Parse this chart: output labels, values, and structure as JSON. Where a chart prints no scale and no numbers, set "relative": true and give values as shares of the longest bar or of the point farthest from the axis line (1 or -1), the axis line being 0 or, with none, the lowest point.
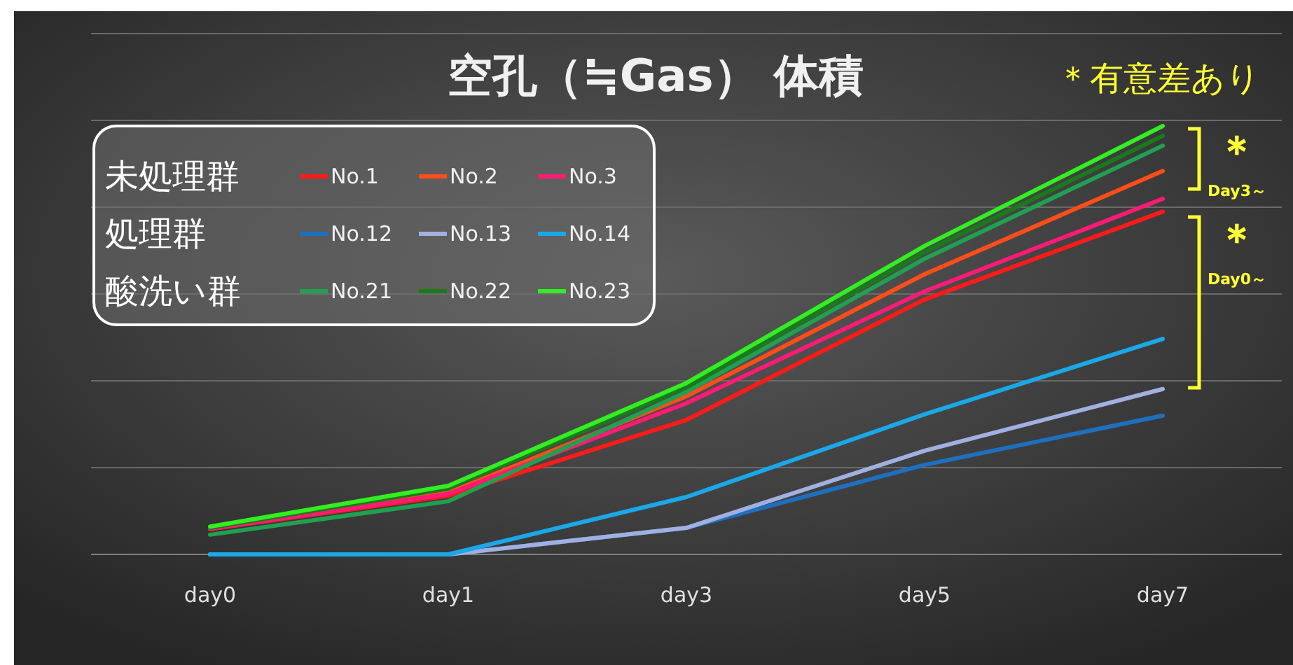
{
  "chart_data": {
    "type": "line",
    "title": "空孔（≒Gas） 体積",
    "relative": true,
    "grid": "y",
    "legend": "top left",
    "categories": [
      "day0",
      "day1",
      "day3",
      "day5",
      "day7"
    ],
    "series": [
      {
        "name": "No.1",
        "color": "#ff1a1a",
        "values": [
          0.059,
          0.137,
          0.314,
          0.595,
          0.8
        ]
      },
      {
        "name": "No.2",
        "color": "#ff4d1a",
        "values": [
          0.062,
          0.144,
          0.369,
          0.654,
          0.895
        ]
      },
      {
        "name": "No.3",
        "color": "#ff1a75",
        "values": [
          0.059,
          0.141,
          0.353,
          0.614,
          0.83
        ]
      },
      {
        "name": "No.12",
        "color": "#1f6fbf",
        "values": [
          0,
          0,
          0.062,
          0.209,
          0.324
        ]
      },
      {
        "name": "No.13",
        "color": "#a0b0e0",
        "values": [
          0,
          0,
          0.062,
          0.242,
          0.386
        ]
      },
      {
        "name": "No.14",
        "color": "#1aa8e8",
        "values": [
          0,
          0,
          0.134,
          0.327,
          0.503
        ]
      },
      {
        "name": "No.21",
        "color": "#20a050",
        "values": [
          0.046,
          0.124,
          0.379,
          0.69,
          0.954
        ]
      },
      {
        "name": "No.22",
        "color": "#1a7a1a",
        "values": [
          0.062,
          0.154,
          0.39,
          0.706,
          0.977
        ]
      },
      {
        "name": "No.23",
        "color": "#33ee22",
        "values": [
          0.065,
          0.16,
          0.4,
          0.72,
          1.0
        ]
      }
    ],
    "annotations": [
      "未処理群",
      "処理群",
      "酸洗い群",
      "＊有意差あり",
      "＊",
      "Day3～",
      "＊",
      "Day0～"
    ]
  }
}
